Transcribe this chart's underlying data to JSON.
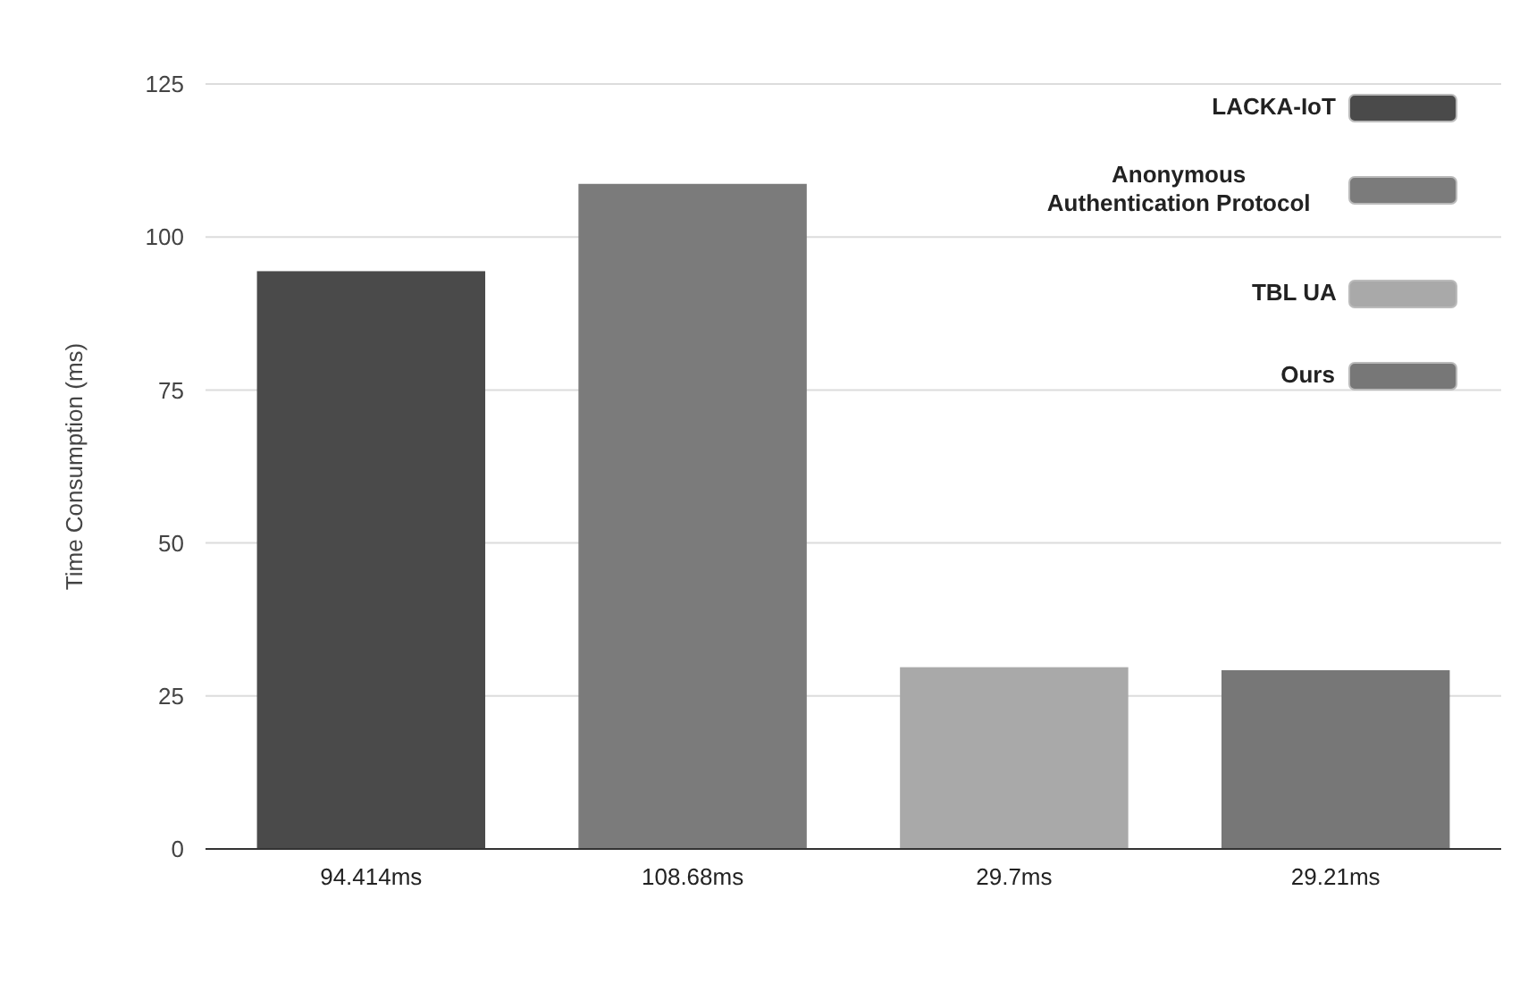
{
  "chart_data": {
    "type": "bar",
    "stacked": true,
    "ylabel": "Time Consumption (ms)",
    "categories": [
      "94.414ms",
      "108.68ms",
      "29.7ms",
      "29.21ms"
    ],
    "series": [
      {
        "name": "LACKA-IoT",
        "color": "#4a4a4a",
        "values": [
          94.414,
          null,
          null,
          null
        ]
      },
      {
        "name": "Anonymous Authentication Protocol",
        "color": "#7b7b7b",
        "values": [
          null,
          108.68,
          null,
          null
        ]
      },
      {
        "name": "TBL UA",
        "color": "#a9a9a9",
        "values": [
          null,
          null,
          29.7,
          null
        ]
      },
      {
        "name": "Ours",
        "color": "#777777",
        "values": [
          null,
          null,
          null,
          29.21
        ]
      }
    ],
    "ylim": [
      0,
      125
    ],
    "yticks": [
      0,
      25,
      50,
      75,
      100,
      125
    ],
    "grid": "y",
    "legend": "top right"
  }
}
